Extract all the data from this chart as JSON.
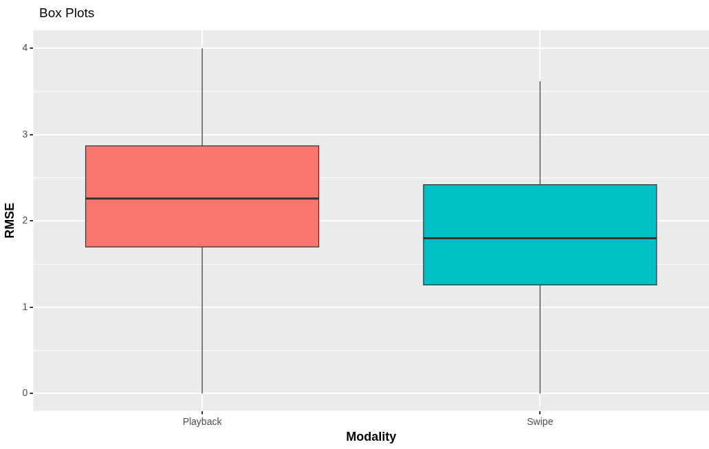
{
  "chart_data": {
    "type": "box",
    "title": "Box Plots",
    "xlabel": "Modality",
    "ylabel": "RMSE",
    "categories": [
      "Playback",
      "Swipe"
    ],
    "boxes": [
      {
        "low": 0,
        "q1": 1.7,
        "median": 2.26,
        "q3": 2.87,
        "high": 4.0
      },
      {
        "low": 0,
        "q1": 1.26,
        "median": 1.8,
        "q3": 2.42,
        "high": 3.62
      }
    ],
    "colors": [
      "#f8766d",
      "#00bfc4"
    ],
    "ylim": [
      -0.2,
      4.21
    ],
    "yticks": [
      0,
      1,
      2,
      3,
      4
    ],
    "grid": true
  }
}
